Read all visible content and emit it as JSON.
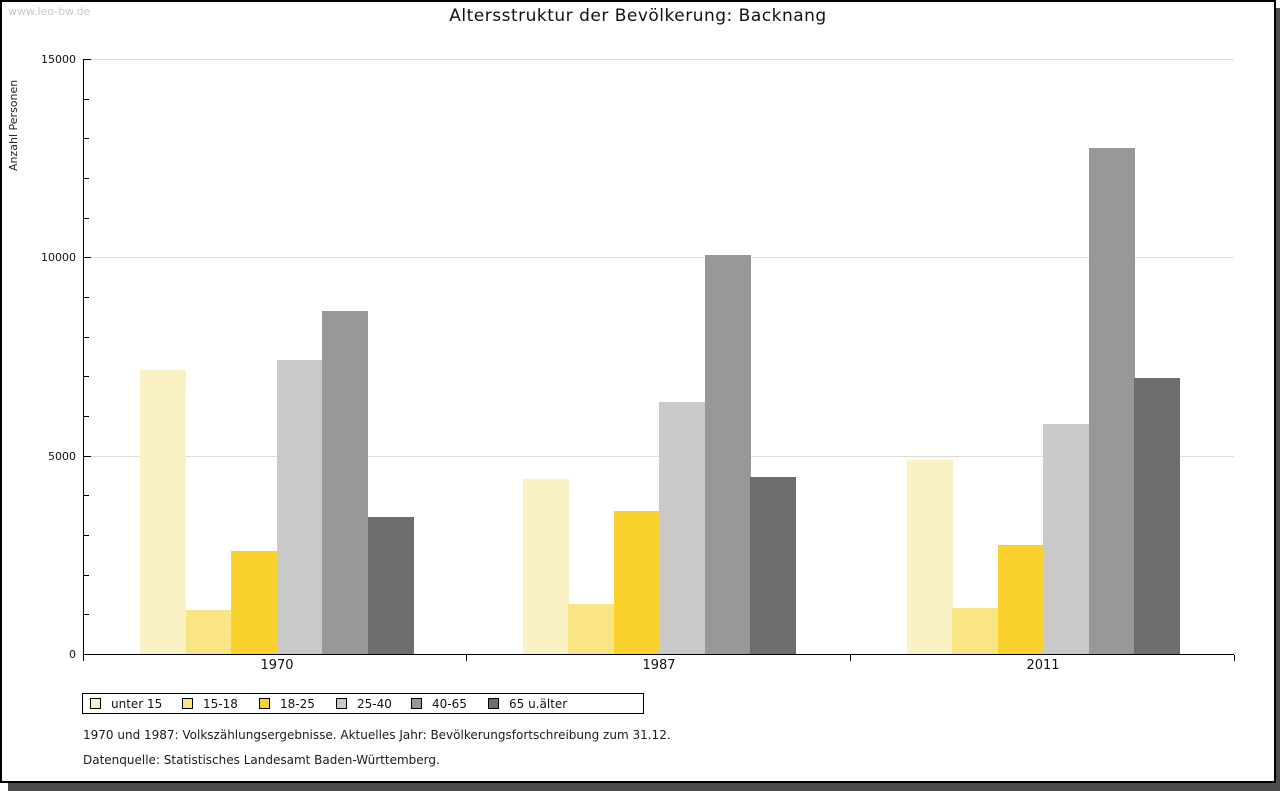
{
  "watermark": "www.leo-bw.de",
  "title": "Altersstruktur der Bevölkerung: Backnang",
  "y_axis_label": "Anzahl Personen",
  "footnotes": [
    "1970 und 1987: Volkszählungsergebnisse. Aktuelles Jahr: Bevölkerungsfortschreibung zum 31.12.",
    "Datenquelle: Statistisches Landesamt Baden-Württemberg."
  ],
  "colors": {
    "axis": "#000000",
    "gridline": "#dddddd",
    "watermark": "#c9c9c9",
    "shadow": "#4d4d4d"
  },
  "chart_data": {
    "type": "bar",
    "title": "Altersstruktur der Bevölkerung: Backnang",
    "xlabel": "",
    "ylabel": "Anzahl Personen",
    "categories": [
      "1970",
      "1987",
      "2011"
    ],
    "series": [
      {
        "name": "unter 15",
        "color": "#faf2c5",
        "values": [
          7150,
          4400,
          4900
        ]
      },
      {
        "name": "15-18",
        "color": "#fae585",
        "values": [
          1100,
          1250,
          1150
        ]
      },
      {
        "name": "18-25",
        "color": "#fbd22d",
        "values": [
          2600,
          3600,
          2750
        ]
      },
      {
        "name": "25-40",
        "color": "#c9c9c9",
        "values": [
          7400,
          6350,
          5800
        ]
      },
      {
        "name": "40-65",
        "color": "#989898",
        "values": [
          8650,
          10050,
          12750
        ]
      },
      {
        "name": "65 u.älter",
        "color": "#6d6d6d",
        "values": [
          3450,
          4450,
          6950
        ]
      }
    ],
    "ylim": [
      0,
      15000
    ],
    "yticks": [
      0,
      5000,
      10000,
      15000
    ],
    "minor_tick_step": 1000,
    "grid": true,
    "legend_position": "bottom"
  }
}
